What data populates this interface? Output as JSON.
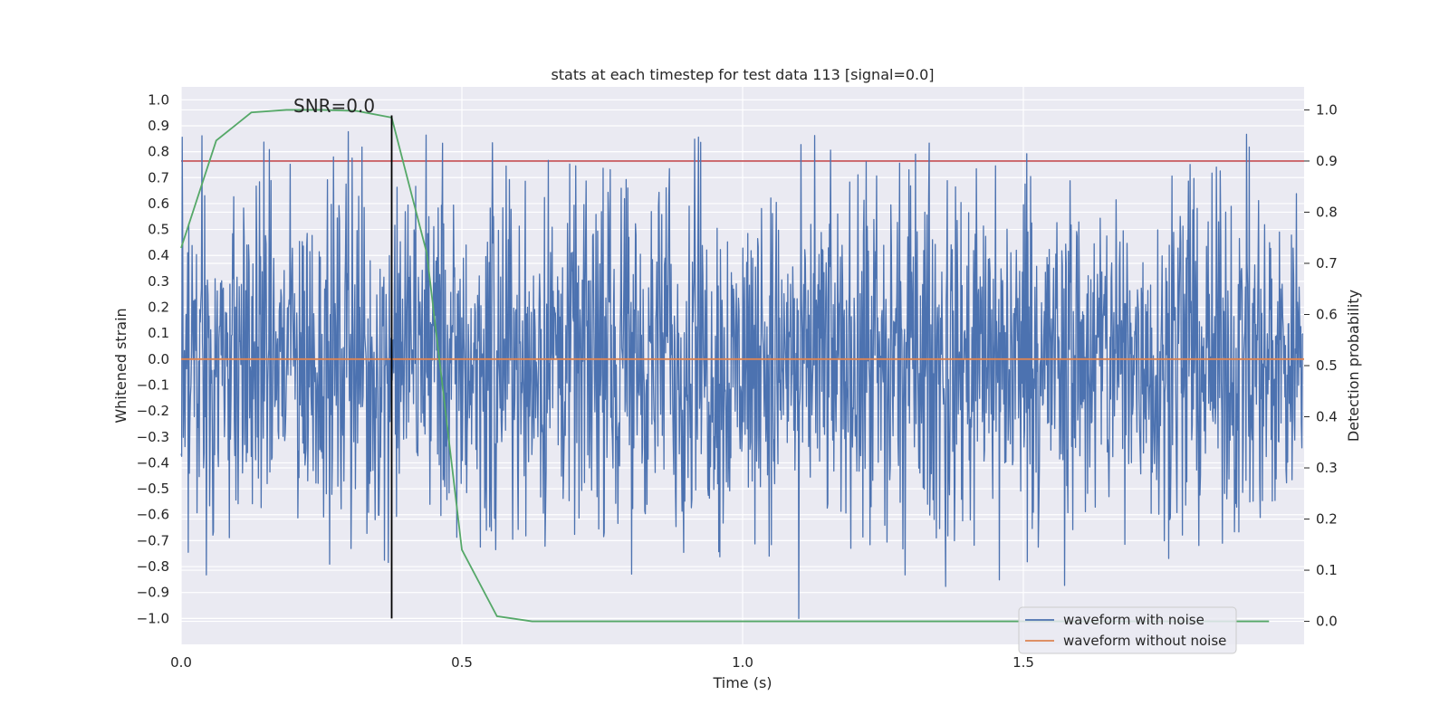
{
  "chart_data": {
    "type": "line",
    "title": "stats at each timestep for test data 113 [signal=0.0]",
    "xlabel": "Time (s)",
    "ylabel": "Whitened strain",
    "y2label": "Detection probability",
    "xlim": [
      0.0,
      2.0
    ],
    "ylim": [
      -1.1,
      1.05
    ],
    "y2lim": [
      -0.045,
      1.045
    ],
    "xticks": [
      0.0,
      0.5,
      1.0,
      1.5
    ],
    "xtick_labels": [
      "0.0",
      "0.5",
      "1.0",
      "1.5"
    ],
    "yticks": [
      1.0,
      0.9,
      0.8,
      0.7,
      0.6,
      0.5,
      0.4,
      0.3,
      0.2,
      0.1,
      0.0,
      -0.1,
      -0.2,
      -0.3,
      -0.4,
      -0.5,
      -0.6,
      -0.7,
      -0.8,
      -0.9,
      -1.0
    ],
    "ytick_labels": [
      "1.0",
      "0.9",
      "0.8",
      "0.7",
      "0.6",
      "0.5",
      "0.4",
      "0.3",
      "0.2",
      "0.1",
      "0.0",
      "−0.1",
      "−0.2",
      "−0.3",
      "−0.4",
      "−0.5",
      "−0.6",
      "−0.7",
      "−0.8",
      "−0.9",
      "−1.0"
    ],
    "y2ticks": [
      1.0,
      0.9,
      0.8,
      0.7,
      0.6,
      0.5,
      0.4,
      0.3,
      0.2,
      0.1,
      0.0
    ],
    "y2tick_labels": [
      "1.0",
      "0.9",
      "0.8",
      "0.7",
      "0.6",
      "0.5",
      "0.4",
      "0.3",
      "0.2",
      "0.1",
      "0.0"
    ],
    "grid": true,
    "series": [
      {
        "name": "waveform with noise",
        "color": "#4c72b0",
        "axis": "left",
        "x_start": 0.0,
        "x_end": 1.998,
        "n_samples": 2048,
        "note": "noise-like signal, roughly uniform in about [-0.6, 0.6] with spikes up to about ±0.9; min -1.0 near t≈1.1 s"
      },
      {
        "name": "waveform without noise",
        "color": "#dd8452",
        "axis": "left",
        "x": [
          0.0,
          2.0
        ],
        "values": [
          0.0,
          0.0
        ]
      },
      {
        "name": "detection probability",
        "color": "#55a868",
        "axis": "right",
        "x": [
          0.0,
          0.0625,
          0.125,
          0.1875,
          0.25,
          0.3125,
          0.375,
          0.4375,
          0.5,
          0.5625,
          0.625,
          0.6875,
          0.75,
          0.8125,
          0.875,
          0.9375,
          1.0,
          1.0625,
          1.125,
          1.1875,
          1.25,
          1.3125,
          1.375,
          1.4375,
          1.5,
          1.5625,
          1.625,
          1.6875,
          1.75,
          1.8125,
          1.875,
          1.9375
        ],
        "values": [
          0.73,
          0.94,
          0.995,
          1.0,
          1.0,
          0.998,
          0.985,
          0.72,
          0.14,
          0.01,
          0.0,
          0.0,
          0.0,
          0.0,
          0.0,
          0.0,
          0.0,
          0.0,
          0.0,
          0.0,
          0.0,
          0.0,
          0.0,
          0.0,
          0.0,
          0.0,
          0.0,
          0.0,
          0.0,
          0.0,
          0.0,
          0.0
        ]
      }
    ],
    "threshold": {
      "axis": "right",
      "value": 0.9,
      "color": "#c44e52"
    },
    "marker": {
      "x": 0.375,
      "label": "SNR=0.0",
      "color": "#000000",
      "y_from": -1.0,
      "y_to": 0.94
    },
    "legend": {
      "location": "lower-right",
      "entries": [
        {
          "label": "waveform with noise",
          "color": "#4c72b0"
        },
        {
          "label": "waveform without noise",
          "color": "#dd8452"
        }
      ]
    }
  }
}
